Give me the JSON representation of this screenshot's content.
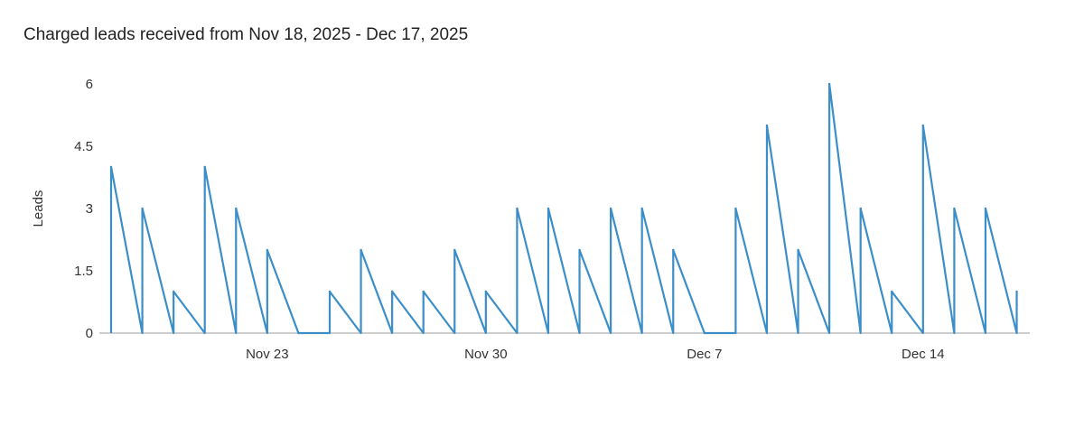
{
  "chart_data": {
    "type": "line",
    "title": "Charged leads received from Nov 18, 2025 - Dec 17, 2025",
    "xlabel": "",
    "ylabel": "Leads",
    "ylim": [
      0,
      6
    ],
    "yticks": [
      "0",
      "1.5",
      "3",
      "4.5",
      "6"
    ],
    "xticks": [
      {
        "label": "Nov 23",
        "day_index": 5
      },
      {
        "label": "Nov 30",
        "day_index": 12
      },
      {
        "label": "Dec 7",
        "day_index": 19
      },
      {
        "label": "Dec 14",
        "day_index": 26
      }
    ],
    "x": [
      "Nov 18",
      "Nov 19",
      "Nov 20",
      "Nov 21",
      "Nov 22",
      "Nov 23",
      "Nov 24",
      "Nov 25",
      "Nov 26",
      "Nov 27",
      "Nov 28",
      "Nov 29",
      "Nov 30",
      "Dec 1",
      "Dec 2",
      "Dec 3",
      "Dec 4",
      "Dec 5",
      "Dec 6",
      "Dec 7",
      "Dec 8",
      "Dec 9",
      "Dec 10",
      "Dec 11",
      "Dec 12",
      "Dec 13",
      "Dec 14",
      "Dec 15",
      "Dec 16",
      "Dec 17"
    ],
    "series": [
      {
        "values": [
          4,
          3,
          1,
          4,
          3,
          2,
          0,
          1,
          2,
          1,
          1,
          2,
          1,
          3,
          3,
          2,
          3,
          3,
          2,
          0,
          3,
          5,
          2,
          6,
          3,
          1,
          5,
          3,
          3,
          1
        ]
      }
    ],
    "grid": false,
    "legend": "none",
    "line_color": "#3b8ec8"
  }
}
